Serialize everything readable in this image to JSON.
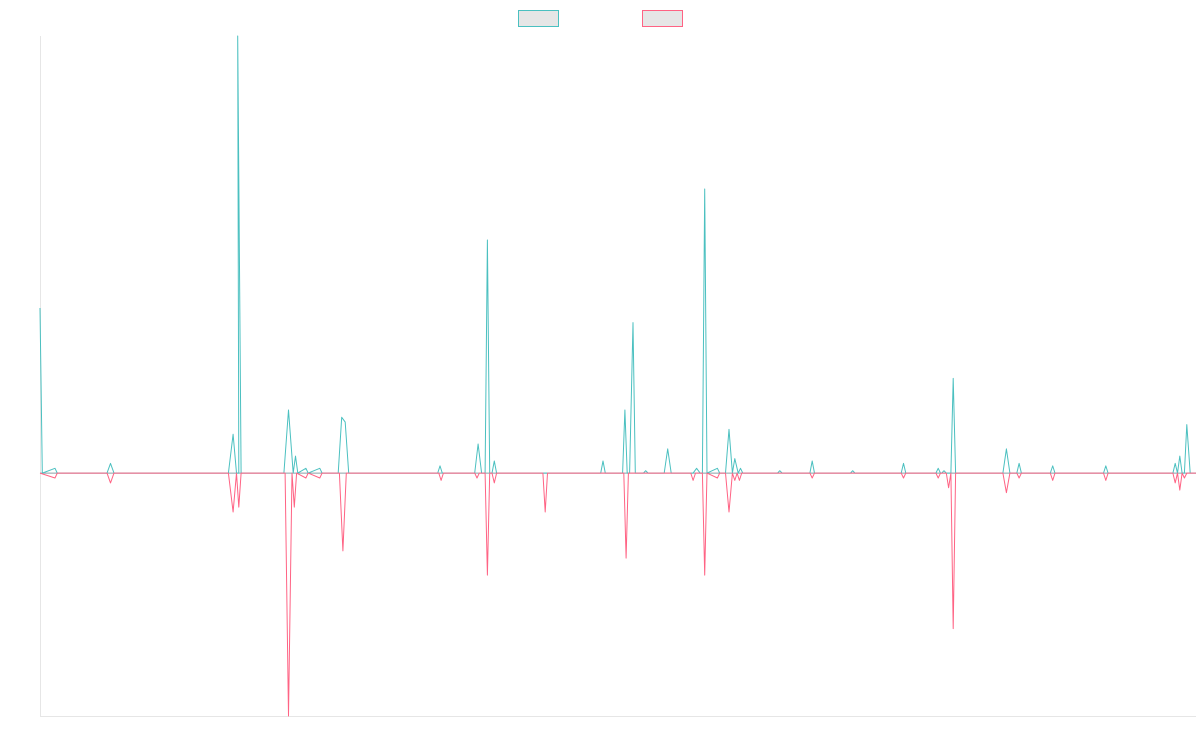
{
  "chart_data": {
    "type": "line",
    "title": "",
    "xlabel": "",
    "ylabel": "",
    "grid": false,
    "legend_position": "top-center",
    "xlim": [
      0,
      100
    ],
    "ylim": [
      -1.0,
      1.8
    ],
    "series": [
      {
        "color": "#4bc0c0",
        "points": [
          [
            0.0,
            0.68
          ],
          [
            0.2,
            0.0
          ],
          [
            1.3,
            0.02
          ],
          [
            1.5,
            0.0
          ],
          [
            5.8,
            0.0
          ],
          [
            6.1,
            0.04
          ],
          [
            6.4,
            0.0
          ],
          [
            16.3,
            0.0
          ],
          [
            16.7,
            0.16
          ],
          [
            17.0,
            0.0
          ],
          [
            17.2,
            0.0
          ],
          [
            17.1,
            1.8
          ],
          [
            17.4,
            0.0
          ],
          [
            21.1,
            0.0
          ],
          [
            21.5,
            0.26
          ],
          [
            21.9,
            0.0
          ],
          [
            22.1,
            0.07
          ],
          [
            22.3,
            0.0
          ],
          [
            23.0,
            0.02
          ],
          [
            23.2,
            0.0
          ],
          [
            24.2,
            0.02
          ],
          [
            24.4,
            0.0
          ],
          [
            25.8,
            0.0
          ],
          [
            26.1,
            0.23
          ],
          [
            26.4,
            0.21
          ],
          [
            26.7,
            0.0
          ],
          [
            34.4,
            0.0
          ],
          [
            34.6,
            0.03
          ],
          [
            34.8,
            0.0
          ],
          [
            37.6,
            0.0
          ],
          [
            37.9,
            0.12
          ],
          [
            38.2,
            0.0
          ],
          [
            38.5,
            0.0
          ],
          [
            38.7,
            0.96
          ],
          [
            38.9,
            0.0
          ],
          [
            39.1,
            0.0
          ],
          [
            39.3,
            0.05
          ],
          [
            39.5,
            0.0
          ],
          [
            48.5,
            0.0
          ],
          [
            48.7,
            0.05
          ],
          [
            48.9,
            0.0
          ],
          [
            50.4,
            0.0
          ],
          [
            50.6,
            0.26
          ],
          [
            50.8,
            0.0
          ],
          [
            51.0,
            0.0
          ],
          [
            51.3,
            0.62
          ],
          [
            51.5,
            0.0
          ],
          [
            52.2,
            0.0
          ],
          [
            52.4,
            0.01
          ],
          [
            52.6,
            0.0
          ],
          [
            54.0,
            0.0
          ],
          [
            54.3,
            0.1
          ],
          [
            54.6,
            0.0
          ],
          [
            56.5,
            0.0
          ],
          [
            56.8,
            0.02
          ],
          [
            57.1,
            0.0
          ],
          [
            57.3,
            0.0
          ],
          [
            57.5,
            1.17
          ],
          [
            57.7,
            0.0
          ],
          [
            58.6,
            0.02
          ],
          [
            58.8,
            0.0
          ],
          [
            59.3,
            0.0
          ],
          [
            59.6,
            0.18
          ],
          [
            59.9,
            0.0
          ],
          [
            60.1,
            0.06
          ],
          [
            60.4,
            0.0
          ],
          [
            60.6,
            0.02
          ],
          [
            60.8,
            0.0
          ],
          [
            63.8,
            0.0
          ],
          [
            64.0,
            0.01
          ],
          [
            64.2,
            0.0
          ],
          [
            66.6,
            0.0
          ],
          [
            66.8,
            0.05
          ],
          [
            67.0,
            0.0
          ],
          [
            70.1,
            0.0
          ],
          [
            70.3,
            0.01
          ],
          [
            70.5,
            0.0
          ],
          [
            74.5,
            0.0
          ],
          [
            74.7,
            0.04
          ],
          [
            74.9,
            0.0
          ],
          [
            77.5,
            0.0
          ],
          [
            77.7,
            0.02
          ],
          [
            77.9,
            0.0
          ],
          [
            78.0,
            0.0
          ],
          [
            78.2,
            0.01
          ],
          [
            78.4,
            0.0
          ],
          [
            78.8,
            0.0
          ],
          [
            79.0,
            0.39
          ],
          [
            79.2,
            0.0
          ],
          [
            83.3,
            0.0
          ],
          [
            83.6,
            0.1
          ],
          [
            83.9,
            0.0
          ],
          [
            84.5,
            0.0
          ],
          [
            84.7,
            0.04
          ],
          [
            84.9,
            0.0
          ],
          [
            87.4,
            0.0
          ],
          [
            87.6,
            0.03
          ],
          [
            87.8,
            0.0
          ],
          [
            92.0,
            0.0
          ],
          [
            92.2,
            0.03
          ],
          [
            92.4,
            0.0
          ],
          [
            98.0,
            0.0
          ],
          [
            98.2,
            0.04
          ],
          [
            98.4,
            0.0
          ],
          [
            98.6,
            0.07
          ],
          [
            98.8,
            0.0
          ],
          [
            99.0,
            0.0
          ],
          [
            99.2,
            0.2
          ],
          [
            99.5,
            0.0
          ],
          [
            100.0,
            0.0
          ]
        ]
      },
      {
        "color": "#ff6384",
        "points": [
          [
            0.0,
            0.0
          ],
          [
            1.3,
            -0.02
          ],
          [
            1.5,
            0.0
          ],
          [
            5.8,
            0.0
          ],
          [
            6.1,
            -0.04
          ],
          [
            6.4,
            0.0
          ],
          [
            16.3,
            0.0
          ],
          [
            16.7,
            -0.16
          ],
          [
            17.0,
            0.0
          ],
          [
            17.2,
            -0.14
          ],
          [
            17.4,
            0.0
          ],
          [
            21.2,
            0.0
          ],
          [
            21.5,
            -1.0
          ],
          [
            21.8,
            0.0
          ],
          [
            22.0,
            -0.14
          ],
          [
            22.2,
            0.0
          ],
          [
            23.0,
            -0.02
          ],
          [
            23.2,
            0.0
          ],
          [
            24.2,
            -0.02
          ],
          [
            24.4,
            0.0
          ],
          [
            25.9,
            0.0
          ],
          [
            26.2,
            -0.32
          ],
          [
            26.5,
            0.0
          ],
          [
            34.5,
            0.0
          ],
          [
            34.7,
            -0.03
          ],
          [
            34.9,
            0.0
          ],
          [
            37.6,
            0.0
          ],
          [
            37.8,
            -0.02
          ],
          [
            38.0,
            0.0
          ],
          [
            38.5,
            0.0
          ],
          [
            38.7,
            -0.42
          ],
          [
            38.9,
            0.0
          ],
          [
            39.1,
            0.0
          ],
          [
            39.3,
            -0.04
          ],
          [
            39.5,
            0.0
          ],
          [
            43.5,
            0.0
          ],
          [
            43.7,
            -0.16
          ],
          [
            43.9,
            0.0
          ],
          [
            50.5,
            0.0
          ],
          [
            50.7,
            -0.35
          ],
          [
            50.9,
            0.0
          ],
          [
            56.3,
            0.0
          ],
          [
            56.5,
            -0.03
          ],
          [
            56.7,
            0.0
          ],
          [
            57.3,
            0.0
          ],
          [
            57.5,
            -0.42
          ],
          [
            57.7,
            0.0
          ],
          [
            58.6,
            -0.02
          ],
          [
            58.8,
            0.0
          ],
          [
            59.3,
            0.0
          ],
          [
            59.6,
            -0.16
          ],
          [
            59.9,
            0.0
          ],
          [
            60.1,
            -0.03
          ],
          [
            60.3,
            0.0
          ],
          [
            60.5,
            -0.03
          ],
          [
            60.7,
            0.0
          ],
          [
            66.6,
            0.0
          ],
          [
            66.8,
            -0.02
          ],
          [
            67.0,
            0.0
          ],
          [
            74.5,
            0.0
          ],
          [
            74.7,
            -0.02
          ],
          [
            74.9,
            0.0
          ],
          [
            77.5,
            0.0
          ],
          [
            77.7,
            -0.02
          ],
          [
            77.9,
            0.0
          ],
          [
            78.4,
            0.0
          ],
          [
            78.6,
            -0.06
          ],
          [
            78.8,
            0.0
          ],
          [
            79.0,
            -0.64
          ],
          [
            79.2,
            0.0
          ],
          [
            83.3,
            0.0
          ],
          [
            83.6,
            -0.08
          ],
          [
            83.9,
            0.0
          ],
          [
            84.5,
            0.0
          ],
          [
            84.7,
            -0.02
          ],
          [
            84.9,
            0.0
          ],
          [
            87.4,
            0.0
          ],
          [
            87.6,
            -0.03
          ],
          [
            87.8,
            0.0
          ],
          [
            92.0,
            0.0
          ],
          [
            92.2,
            -0.03
          ],
          [
            92.4,
            0.0
          ],
          [
            98.0,
            0.0
          ],
          [
            98.2,
            -0.04
          ],
          [
            98.4,
            0.0
          ],
          [
            98.6,
            -0.07
          ],
          [
            98.8,
            0.0
          ],
          [
            99.0,
            -0.02
          ],
          [
            99.2,
            0.0
          ],
          [
            100.0,
            0.0
          ]
        ]
      }
    ]
  }
}
